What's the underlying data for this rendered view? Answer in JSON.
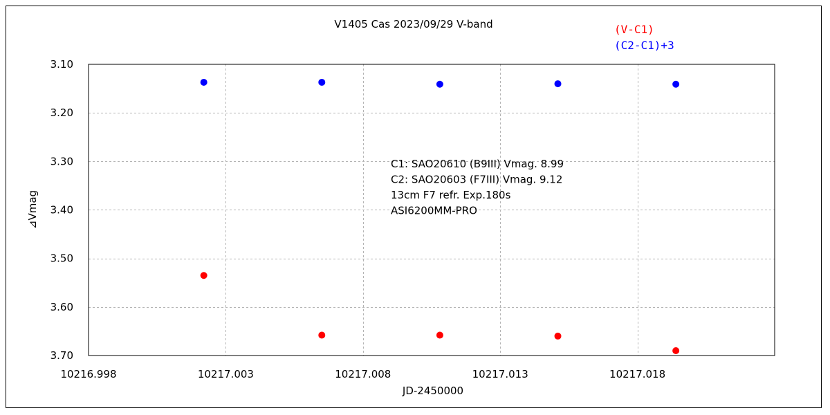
{
  "chart_data": {
    "type": "scatter",
    "title": "V1405 Cas   2023/09/29   V-band",
    "xlabel": "JD-2450000",
    "ylabel": "⊿Vmag",
    "xlim": [
      10216.998,
      10217.023
    ],
    "ylim": [
      3.1,
      3.7
    ],
    "y_inverted": true,
    "grid": true,
    "legend_position": "top-right",
    "x_ticks": [
      "10216.998",
      "10217.003",
      "10217.008",
      "10217.013",
      "10217.018"
    ],
    "x_tick_values": [
      10216.998,
      10217.003,
      10217.008,
      10217.013,
      10217.018
    ],
    "y_ticks": [
      "3.10",
      "3.20",
      "3.30",
      "3.40",
      "3.50",
      "3.60",
      "3.70"
    ],
    "y_tick_values": [
      3.1,
      3.2,
      3.3,
      3.4,
      3.5,
      3.6,
      3.7
    ],
    "annotations": [
      "C1: SAO20610 (B9III) Vmag. 8.99",
      "C2: SAO20603 (F7III) Vmag. 9.12",
      "13cm F7 refr.  Exp.180s",
      "ASI6200MM-PRO"
    ],
    "series": [
      {
        "name": "(V-C1)",
        "color": "#ff0000",
        "x": [
          10217.0022,
          10217.0065,
          10217.0108,
          10217.0151,
          10217.0194
        ],
        "y": [
          3.535,
          3.658,
          3.658,
          3.66,
          3.69
        ]
      },
      {
        "name": "(C2-C1)+3",
        "color": "#0000ff",
        "x": [
          10217.0022,
          10217.0065,
          10217.0108,
          10217.0151,
          10217.0194
        ],
        "y": [
          3.137,
          3.137,
          3.141,
          3.14,
          3.141
        ]
      }
    ]
  }
}
